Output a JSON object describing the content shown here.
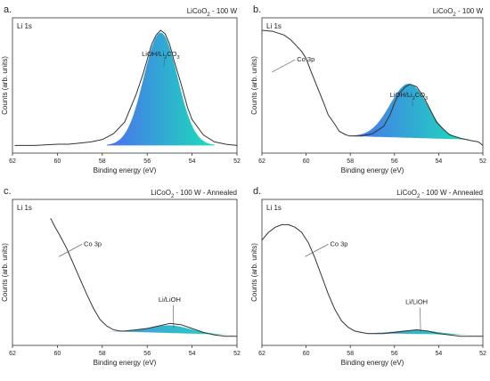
{
  "chart_data": [
    {
      "panel_label": "a.",
      "title": "LiCoO",
      "title_sub": "2",
      "title_suffix": " - 100 W",
      "corner_label": "Li 1s",
      "type": "line",
      "xlabel": "Binding energy (eV)",
      "ylabel": "Counts (arb. units)",
      "xlim": [
        62,
        52
      ],
      "x_ticks": [
        "62",
        "60",
        "58",
        "56",
        "54",
        "52"
      ],
      "x_tick_values": [
        62,
        60,
        58,
        56,
        54,
        52
      ],
      "ylim": [
        0,
        1
      ],
      "spectrum": {
        "x": [
          61.9,
          61,
          60,
          59.5,
          59,
          58.5,
          58,
          57.5,
          57,
          56.5,
          56.2,
          56,
          55.8,
          55.6,
          55.4,
          55.2,
          55,
          54.8,
          54.5,
          54.2,
          54,
          53.5,
          53,
          52.5,
          52
        ],
        "y": [
          0.02,
          0.02,
          0.03,
          0.03,
          0.04,
          0.05,
          0.07,
          0.12,
          0.22,
          0.45,
          0.62,
          0.75,
          0.88,
          0.96,
          1.0,
          0.97,
          0.88,
          0.74,
          0.55,
          0.34,
          0.24,
          0.11,
          0.05,
          0.03,
          0.02
        ]
      },
      "peaks": [
        {
          "name": "LiOH/Li",
          "name_sub": "2",
          "name_suffix": "CO",
          "name_sub2": "3",
          "center": 55.4,
          "height": 0.96,
          "width": 0.75,
          "color_left": "#4c6ef0",
          "color_right": "#19e0b8"
        }
      ],
      "annotation_x": 57.3,
      "annotation_y": 0.78
    },
    {
      "panel_label": "b.",
      "title": "LiCoO",
      "title_sub": "2",
      "title_suffix": " - 100 W",
      "corner_label": "Li 1s",
      "type": "line",
      "xlabel": "Binding energy (eV)",
      "ylabel": "Counts (arb. units)",
      "xlim": [
        62,
        52
      ],
      "x_ticks": [
        "62",
        "60",
        "58",
        "56",
        "54",
        "52"
      ],
      "x_tick_values": [
        62,
        60,
        58,
        56,
        54,
        52
      ],
      "ylim": [
        0,
        1
      ],
      "spectrum": {
        "x": [
          62,
          61.5,
          61,
          60.7,
          60.5,
          60.2,
          60,
          59.8,
          59.5,
          59.2,
          59,
          58.7,
          58.5,
          58.2,
          58,
          57.5,
          57,
          56.5,
          56.2,
          56,
          55.8,
          55.5,
          55.3,
          55,
          54.7,
          54.4,
          54.1,
          53.8,
          53.5,
          53,
          52.5,
          52.2,
          52
        ],
        "y": [
          1.0,
          0.99,
          0.96,
          0.92,
          0.88,
          0.82,
          0.76,
          0.66,
          0.52,
          0.38,
          0.28,
          0.2,
          0.14,
          0.11,
          0.1,
          0.1,
          0.12,
          0.18,
          0.28,
          0.38,
          0.46,
          0.52,
          0.54,
          0.52,
          0.44,
          0.33,
          0.22,
          0.16,
          0.11,
          0.08,
          0.06,
          0.05,
          0.02
        ]
      },
      "peaks": [
        {
          "name": "LiOH/Li",
          "name_sub": "2",
          "name_suffix": "CO",
          "name_sub2": "3",
          "center": 55.35,
          "height": 0.46,
          "width": 0.85,
          "base_left": 0.1,
          "base_right": 0.07,
          "color_left": "#4c6ef0",
          "color_right": "#19e0b8"
        }
      ],
      "co_label": "Co 3p",
      "co_label_x": 60.9,
      "co_label_y": 0.72,
      "annotation_x": 57.8,
      "annotation_y": 0.43
    },
    {
      "panel_label": "c.",
      "title": "LiCoO",
      "title_sub": "2",
      "title_suffix": " - 100 W - Annealed",
      "corner_label": "Li 1s",
      "type": "line",
      "xlabel": "Binding energy (eV)",
      "ylabel": "Counts (arb. units)",
      "xlim": [
        62,
        52
      ],
      "x_ticks": [
        "62",
        "60",
        "58",
        "56",
        "54",
        "52"
      ],
      "x_tick_values": [
        62,
        60,
        58,
        56,
        54,
        52
      ],
      "ylim": [
        0,
        1
      ],
      "spectrum": {
        "x": [
          60.3,
          60.1,
          59.9,
          59.6,
          59.3,
          59,
          58.7,
          58.4,
          58.1,
          57.8,
          57.5,
          57.2,
          57,
          56.5,
          56,
          55.5,
          55,
          54.5,
          54,
          53.5,
          53,
          52.5,
          52
        ],
        "y": [
          0.95,
          0.88,
          0.82,
          0.72,
          0.6,
          0.48,
          0.36,
          0.25,
          0.16,
          0.11,
          0.08,
          0.07,
          0.07,
          0.08,
          0.09,
          0.11,
          0.13,
          0.12,
          0.09,
          0.06,
          0.04,
          0.03,
          0.03
        ]
      },
      "peaks": [
        {
          "name": "Li/LiOH",
          "center": 55.0,
          "height": 0.06,
          "width": 0.9,
          "base_left": 0.07,
          "base_right": 0.04,
          "color_left": "#4c8de0",
          "color_right": "#19e0b8"
        }
      ],
      "co_label": "Co 3p",
      "co_label_x": 59.3,
      "co_label_y": 0.72,
      "annotation_x": 55.0,
      "annotation_y": 0.3
    },
    {
      "panel_label": "d.",
      "title": "LiCoO",
      "title_sub": "2",
      "title_suffix": " - 100 W - Annealed",
      "corner_label": "Li 1s",
      "type": "line",
      "xlabel": "Binding energy (eV)",
      "ylabel": "Counts (arb. units)",
      "xlim": [
        62,
        52
      ],
      "x_ticks": [
        "62",
        "60",
        "58",
        "56",
        "54",
        "52"
      ],
      "x_tick_values": [
        62,
        60,
        58,
        56,
        54,
        52
      ],
      "ylim": [
        0,
        1
      ],
      "spectrum": {
        "x": [
          62,
          61.7,
          61.4,
          61.1,
          60.8,
          60.5,
          60.2,
          59.9,
          59.6,
          59.3,
          59,
          58.7,
          58.4,
          58.1,
          57.8,
          57.5,
          57.2,
          57,
          56.5,
          56,
          55.5,
          55,
          54.5,
          54,
          53.5,
          53,
          52.5,
          52
        ],
        "y": [
          0.78,
          0.84,
          0.88,
          0.9,
          0.9,
          0.88,
          0.84,
          0.76,
          0.64,
          0.5,
          0.36,
          0.24,
          0.15,
          0.1,
          0.07,
          0.06,
          0.05,
          0.05,
          0.05,
          0.06,
          0.07,
          0.08,
          0.07,
          0.05,
          0.04,
          0.03,
          0.03,
          0.03
        ]
      },
      "peaks": [
        {
          "name": "Li/LiOH",
          "center": 55.0,
          "height": 0.03,
          "width": 0.9,
          "base_left": 0.055,
          "base_right": 0.04,
          "color_left": "#4c8de0",
          "color_right": "#19e0b8"
        }
      ],
      "co_label": "Co 3p",
      "co_label_x": 59.4,
      "co_label_y": 0.72,
      "annotation_x": 55.0,
      "annotation_y": 0.28
    }
  ]
}
